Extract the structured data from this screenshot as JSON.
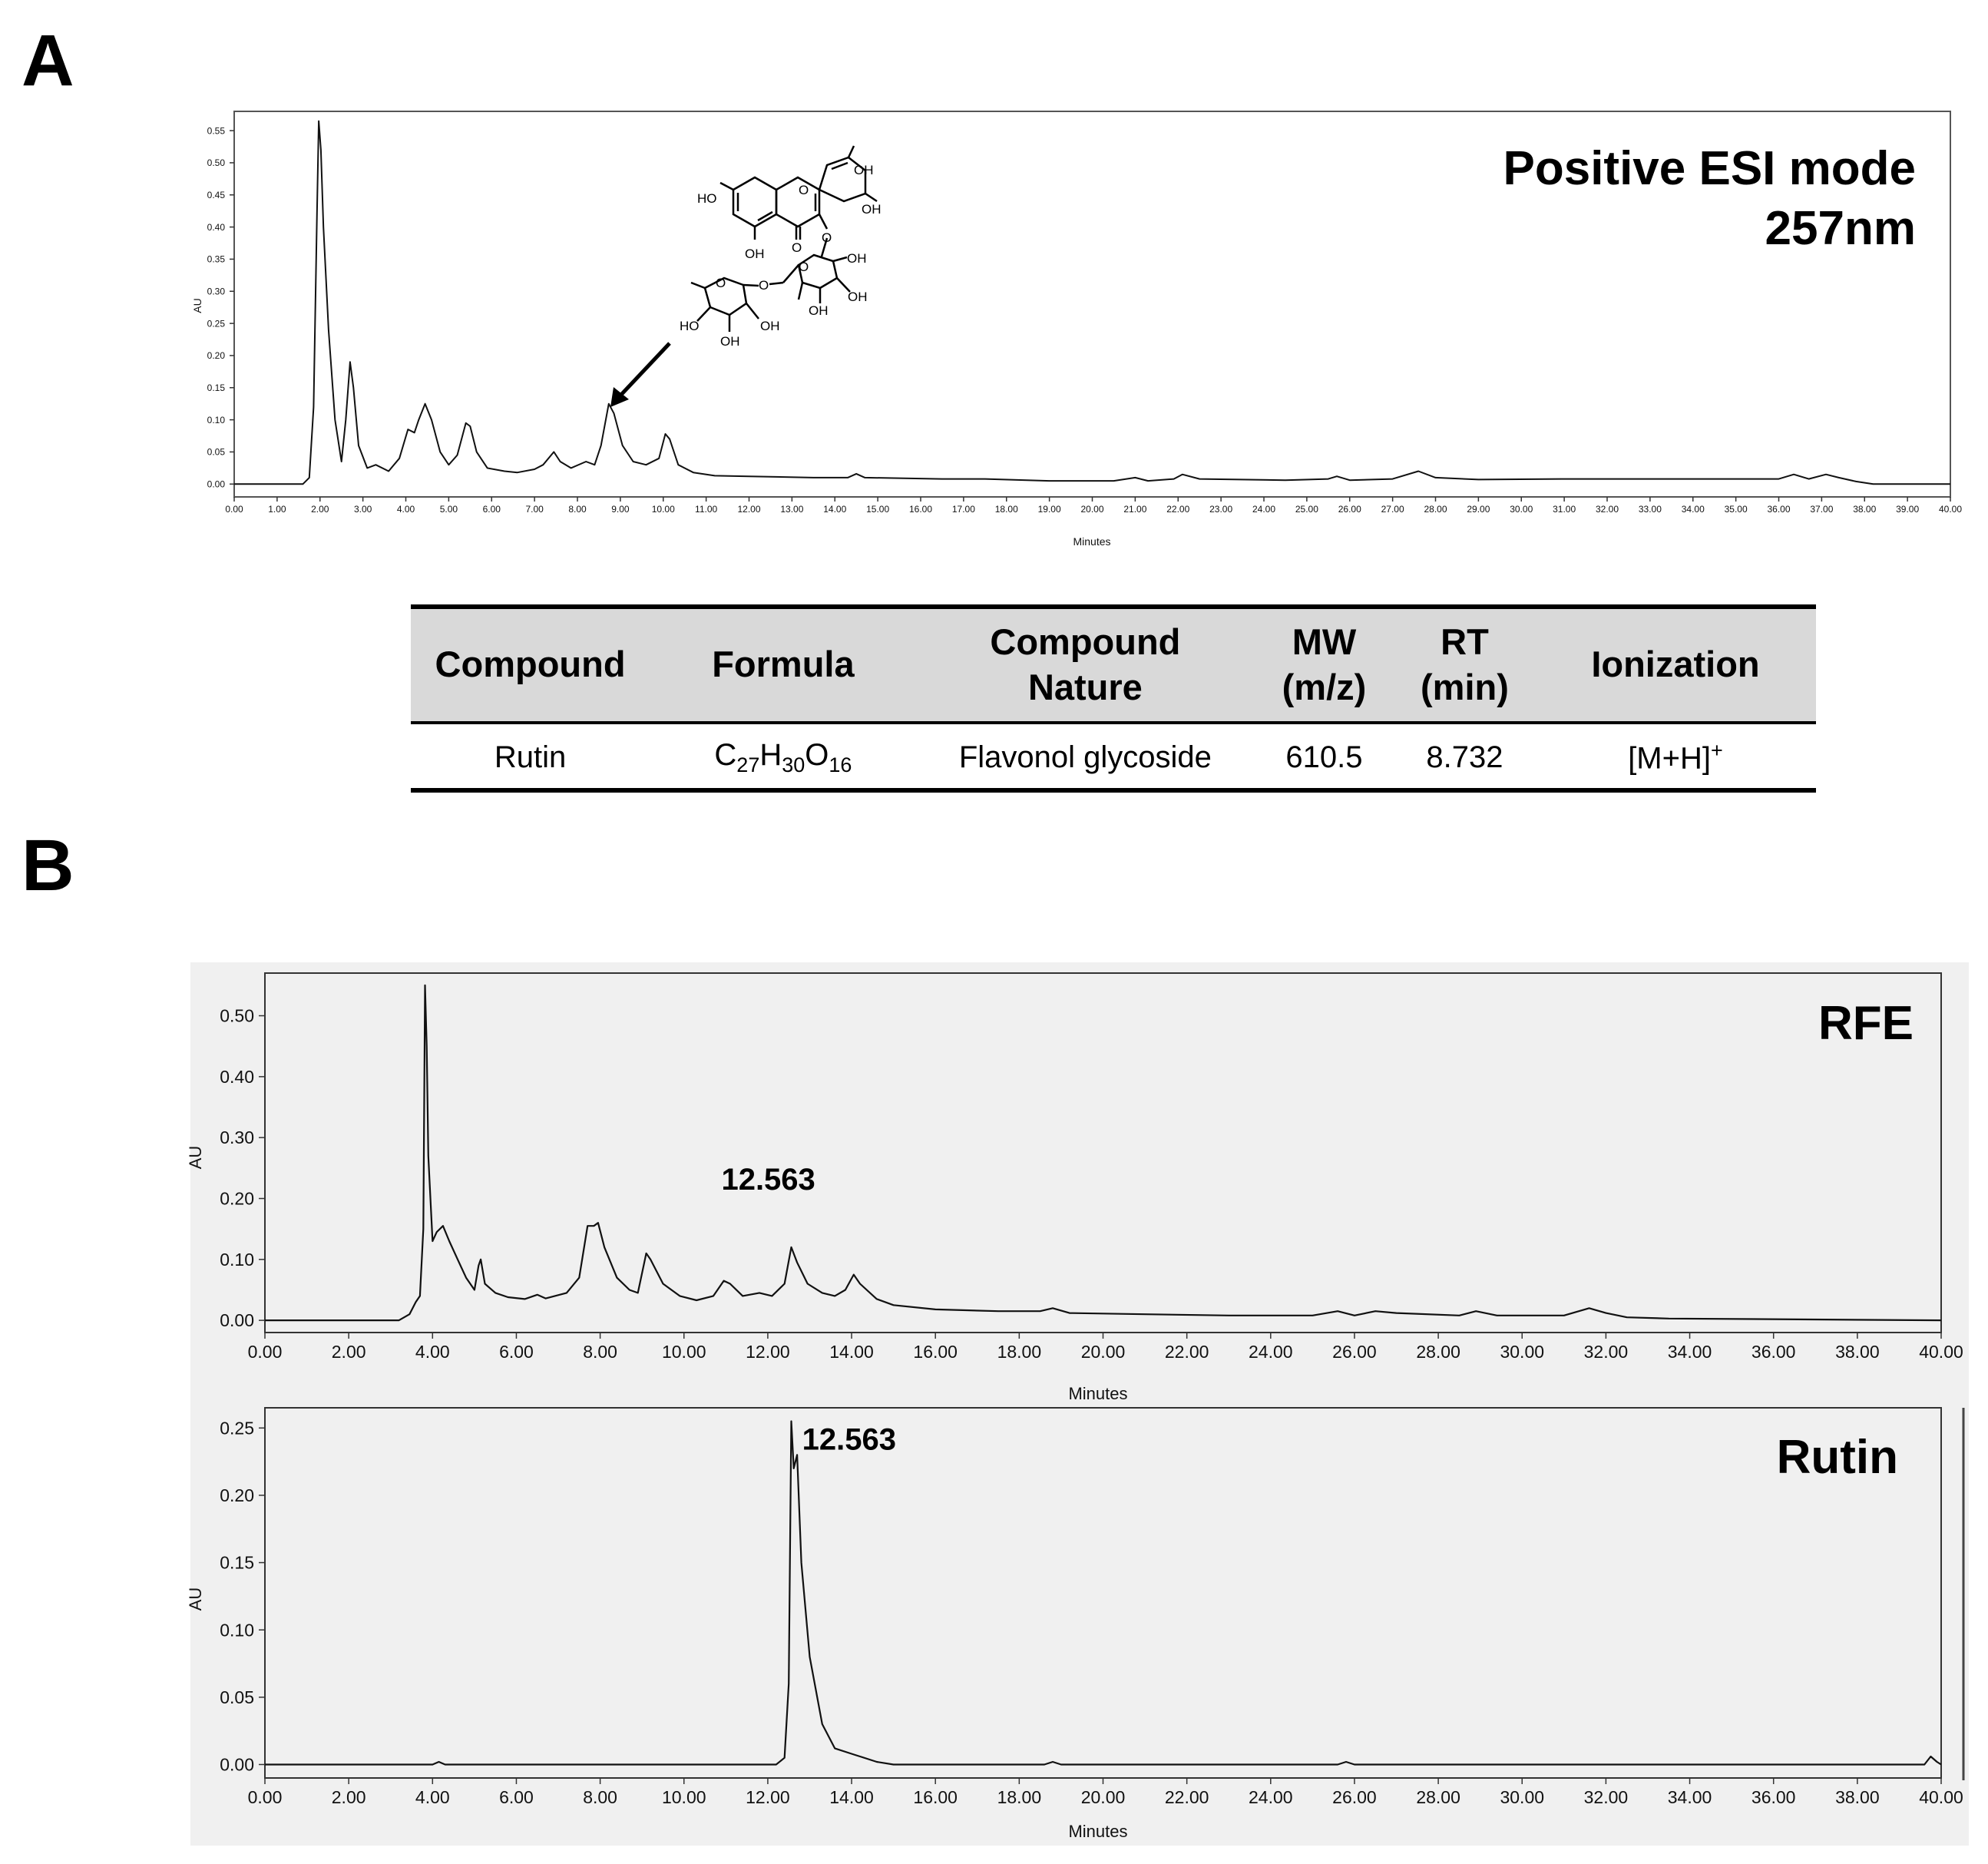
{
  "panel_labels": {
    "a": "A",
    "b": "B"
  },
  "chart_data": [
    {
      "id": "A",
      "type": "line",
      "title": "Positive ESI mode",
      "subtitle": "257nm",
      "xlabel": "Minutes",
      "ylabel": "AU",
      "xlim": [
        0,
        40
      ],
      "ylim": [
        -0.02,
        0.58
      ],
      "xticks": [
        0,
        1,
        2,
        3,
        4,
        5,
        6,
        7,
        8,
        9,
        10,
        11,
        12,
        13,
        14,
        15,
        16,
        17,
        18,
        19,
        20,
        21,
        22,
        23,
        24,
        25,
        26,
        27,
        28,
        29,
        30,
        31,
        32,
        33,
        34,
        35,
        36,
        37,
        38,
        39,
        40
      ],
      "yticks": [
        0,
        0.05,
        0.1,
        0.15,
        0.2,
        0.25,
        0.3,
        0.35,
        0.4,
        0.45,
        0.5,
        0.55
      ],
      "series": [
        {
          "points": [
            [
              0,
              0
            ],
            [
              1.6,
              0
            ],
            [
              1.75,
              0.01
            ],
            [
              1.85,
              0.12
            ],
            [
              1.93,
              0.42
            ],
            [
              1.97,
              0.565
            ],
            [
              2.02,
              0.52
            ],
            [
              2.08,
              0.4
            ],
            [
              2.2,
              0.24
            ],
            [
              2.35,
              0.1
            ],
            [
              2.5,
              0.035
            ],
            [
              2.6,
              0.1
            ],
            [
              2.7,
              0.19
            ],
            [
              2.78,
              0.15
            ],
            [
              2.9,
              0.06
            ],
            [
              3.1,
              0.025
            ],
            [
              3.3,
              0.03
            ],
            [
              3.6,
              0.02
            ],
            [
              3.85,
              0.04
            ],
            [
              4.05,
              0.085
            ],
            [
              4.2,
              0.08
            ],
            [
              4.3,
              0.1
            ],
            [
              4.45,
              0.125
            ],
            [
              4.6,
              0.1
            ],
            [
              4.8,
              0.05
            ],
            [
              5.0,
              0.03
            ],
            [
              5.2,
              0.045
            ],
            [
              5.4,
              0.095
            ],
            [
              5.5,
              0.09
            ],
            [
              5.65,
              0.05
            ],
            [
              5.9,
              0.025
            ],
            [
              6.3,
              0.02
            ],
            [
              6.6,
              0.018
            ],
            [
              7.0,
              0.023
            ],
            [
              7.2,
              0.03
            ],
            [
              7.45,
              0.05
            ],
            [
              7.6,
              0.035
            ],
            [
              7.85,
              0.025
            ],
            [
              8.2,
              0.035
            ],
            [
              8.4,
              0.03
            ],
            [
              8.55,
              0.06
            ],
            [
              8.73,
              0.125
            ],
            [
              8.85,
              0.11
            ],
            [
              9.05,
              0.06
            ],
            [
              9.3,
              0.035
            ],
            [
              9.6,
              0.03
            ],
            [
              9.9,
              0.04
            ],
            [
              10.05,
              0.078
            ],
            [
              10.15,
              0.07
            ],
            [
              10.35,
              0.03
            ],
            [
              10.7,
              0.018
            ],
            [
              11.2,
              0.013
            ],
            [
              12.0,
              0.012
            ],
            [
              13.5,
              0.01
            ],
            [
              14.3,
              0.01
            ],
            [
              14.5,
              0.016
            ],
            [
              14.7,
              0.01
            ],
            [
              16.5,
              0.008
            ],
            [
              17.5,
              0.008
            ],
            [
              19.0,
              0.005
            ],
            [
              20.5,
              0.005
            ],
            [
              21.0,
              0.01
            ],
            [
              21.3,
              0.005
            ],
            [
              21.9,
              0.008
            ],
            [
              22.1,
              0.015
            ],
            [
              22.5,
              0.008
            ],
            [
              24.5,
              0.006
            ],
            [
              25.5,
              0.008
            ],
            [
              25.7,
              0.012
            ],
            [
              26.0,
              0.006
            ],
            [
              27.0,
              0.008
            ],
            [
              27.6,
              0.02
            ],
            [
              28.0,
              0.01
            ],
            [
              29.0,
              0.007
            ],
            [
              31.0,
              0.008
            ],
            [
              32.0,
              0.008
            ],
            [
              35.0,
              0.008
            ],
            [
              36.0,
              0.008
            ],
            [
              36.35,
              0.015
            ],
            [
              36.7,
              0.008
            ],
            [
              37.1,
              0.015
            ],
            [
              37.4,
              0.01
            ],
            [
              37.8,
              0.004
            ],
            [
              38.2,
              0
            ],
            [
              40,
              0
            ]
          ]
        }
      ],
      "annotations": [
        {
          "type": "arrow",
          "x": 8.73,
          "y": 0.125,
          "target": "structure"
        }
      ]
    },
    {
      "id": "B-top",
      "type": "line",
      "title": "RFE",
      "xlabel": "Minutes",
      "ylabel": "AU",
      "xlim": [
        0,
        40
      ],
      "ylim": [
        -0.02,
        0.57
      ],
      "xticks": [
        0,
        2,
        4,
        6,
        8,
        10,
        12,
        14,
        16,
        18,
        20,
        22,
        24,
        26,
        28,
        30,
        32,
        34,
        36,
        38,
        40
      ],
      "yticks": [
        0,
        0.1,
        0.2,
        0.3,
        0.4,
        0.5
      ],
      "peak_label": {
        "text": "12.563",
        "x": 12.563,
        "y": 0.12
      },
      "series": [
        {
          "points": [
            [
              0,
              0
            ],
            [
              3.2,
              0
            ],
            [
              3.45,
              0.01
            ],
            [
              3.6,
              0.03
            ],
            [
              3.7,
              0.04
            ],
            [
              3.78,
              0.15
            ],
            [
              3.82,
              0.55
            ],
            [
              3.86,
              0.45
            ],
            [
              3.9,
              0.27
            ],
            [
              4.0,
              0.13
            ],
            [
              4.1,
              0.145
            ],
            [
              4.25,
              0.155
            ],
            [
              4.4,
              0.13
            ],
            [
              4.6,
              0.1
            ],
            [
              4.8,
              0.07
            ],
            [
              5.0,
              0.05
            ],
            [
              5.1,
              0.09
            ],
            [
              5.15,
              0.1
            ],
            [
              5.25,
              0.06
            ],
            [
              5.5,
              0.045
            ],
            [
              5.8,
              0.038
            ],
            [
              6.2,
              0.035
            ],
            [
              6.5,
              0.042
            ],
            [
              6.7,
              0.036
            ],
            [
              7.2,
              0.045
            ],
            [
              7.5,
              0.07
            ],
            [
              7.7,
              0.155
            ],
            [
              7.85,
              0.155
            ],
            [
              7.95,
              0.16
            ],
            [
              8.1,
              0.12
            ],
            [
              8.4,
              0.07
            ],
            [
              8.7,
              0.05
            ],
            [
              8.9,
              0.045
            ],
            [
              9.1,
              0.11
            ],
            [
              9.2,
              0.1
            ],
            [
              9.5,
              0.06
            ],
            [
              9.9,
              0.04
            ],
            [
              10.3,
              0.033
            ],
            [
              10.7,
              0.04
            ],
            [
              10.95,
              0.065
            ],
            [
              11.1,
              0.06
            ],
            [
              11.4,
              0.04
            ],
            [
              11.8,
              0.045
            ],
            [
              12.1,
              0.04
            ],
            [
              12.4,
              0.06
            ],
            [
              12.56,
              0.12
            ],
            [
              12.7,
              0.095
            ],
            [
              12.95,
              0.06
            ],
            [
              13.3,
              0.045
            ],
            [
              13.6,
              0.04
            ],
            [
              13.85,
              0.05
            ],
            [
              14.05,
              0.075
            ],
            [
              14.2,
              0.06
            ],
            [
              14.6,
              0.035
            ],
            [
              15.0,
              0.025
            ],
            [
              16.0,
              0.018
            ],
            [
              17.5,
              0.015
            ],
            [
              18.5,
              0.015
            ],
            [
              18.8,
              0.02
            ],
            [
              19.2,
              0.012
            ],
            [
              21.0,
              0.01
            ],
            [
              23.0,
              0.008
            ],
            [
              25.0,
              0.008
            ],
            [
              25.6,
              0.015
            ],
            [
              26.0,
              0.008
            ],
            [
              26.5,
              0.015
            ],
            [
              27.0,
              0.012
            ],
            [
              28.5,
              0.008
            ],
            [
              28.9,
              0.015
            ],
            [
              29.4,
              0.008
            ],
            [
              31.0,
              0.008
            ],
            [
              31.6,
              0.02
            ],
            [
              32.0,
              0.012
            ],
            [
              32.5,
              0.005
            ],
            [
              33.5,
              0.003
            ],
            [
              40,
              0
            ]
          ]
        }
      ]
    },
    {
      "id": "B-bottom",
      "type": "line",
      "title": "Rutin",
      "xlabel": "Minutes",
      "ylabel": "AU",
      "xlim": [
        0,
        40
      ],
      "ylim": [
        -0.01,
        0.265
      ],
      "xticks": [
        0,
        2,
        4,
        6,
        8,
        10,
        12,
        14,
        16,
        18,
        20,
        22,
        24,
        26,
        28,
        30,
        32,
        34,
        36,
        38,
        40
      ],
      "yticks": [
        0,
        0.05,
        0.1,
        0.15,
        0.2,
        0.25
      ],
      "peak_label": {
        "text": "12.563",
        "x": 12.563,
        "y": 0.258
      },
      "series": [
        {
          "points": [
            [
              0,
              0
            ],
            [
              4.0,
              0
            ],
            [
              4.15,
              0.002
            ],
            [
              4.3,
              0
            ],
            [
              12.2,
              0
            ],
            [
              12.4,
              0.005
            ],
            [
              12.5,
              0.06
            ],
            [
              12.56,
              0.255
            ],
            [
              12.62,
              0.22
            ],
            [
              12.7,
              0.23
            ],
            [
              12.8,
              0.15
            ],
            [
              13.0,
              0.08
            ],
            [
              13.3,
              0.03
            ],
            [
              13.6,
              0.012
            ],
            [
              14.0,
              0.008
            ],
            [
              14.2,
              0.006
            ],
            [
              14.6,
              0.002
            ],
            [
              15.0,
              0
            ],
            [
              18.6,
              0
            ],
            [
              18.8,
              0.002
            ],
            [
              19.0,
              0
            ],
            [
              25.6,
              0
            ],
            [
              25.8,
              0.002
            ],
            [
              26.0,
              0
            ],
            [
              39.6,
              0
            ],
            [
              39.75,
              0.006
            ],
            [
              39.9,
              0.002
            ],
            [
              40,
              0
            ]
          ]
        }
      ]
    }
  ],
  "structure_labels": [
    "HO",
    "OH",
    "OH",
    "OH",
    "O",
    "O",
    "OH",
    "OH",
    "OH",
    "HO",
    "OH",
    "OH",
    "O",
    "O",
    "O",
    "O"
  ],
  "table": {
    "headers": [
      "Compound",
      "Formula",
      "Compound\nNature",
      "MW\n(m/z)",
      "RT\n(min)",
      "Ionization"
    ],
    "row": {
      "compound": "Rutin",
      "formula_parts": [
        "C",
        "27",
        "H",
        "30",
        "O",
        "16"
      ],
      "nature": "Flavonol glycoside",
      "mw": "610.5",
      "rt": "8.732",
      "ionization_base": "[M+H]",
      "ionization_sup": "+"
    }
  }
}
